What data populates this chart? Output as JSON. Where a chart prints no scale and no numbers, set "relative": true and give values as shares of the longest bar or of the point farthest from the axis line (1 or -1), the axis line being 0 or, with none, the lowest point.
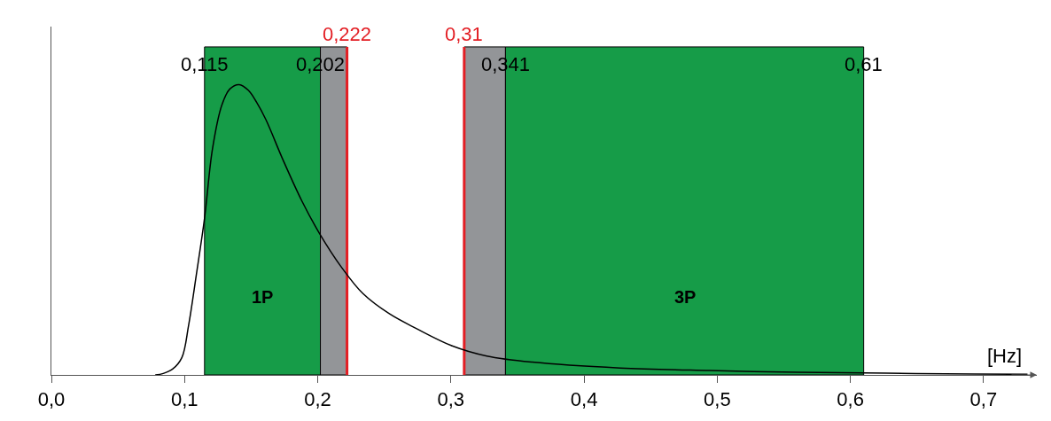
{
  "chart_data": {
    "type": "line",
    "relative": true,
    "xlabel": "[Hz]",
    "x": [
      0.078,
      0.084,
      0.091,
      0.098,
      0.103,
      0.109,
      0.115,
      0.121,
      0.128,
      0.134,
      0.141,
      0.148,
      0.154,
      0.161,
      0.174,
      0.188,
      0.201,
      0.218,
      0.234,
      0.254,
      0.274,
      0.301,
      0.327,
      0.361,
      0.427,
      0.494,
      0.56,
      0.627,
      0.693,
      0.733
    ],
    "series": [
      {
        "color": "#000000",
        "values": [
          0,
          0.005,
          0.02,
          0.06,
          0.17,
          0.35,
          0.54,
          0.78,
          0.93,
          0.985,
          1.0,
          0.98,
          0.94,
          0.88,
          0.74,
          0.6,
          0.49,
          0.37,
          0.28,
          0.21,
          0.16,
          0.1,
          0.065,
          0.044,
          0.024,
          0.015,
          0.009,
          0.006,
          0.003,
          0.002
        ]
      }
    ],
    "xlim": [
      0,
      0.74
    ],
    "xticks": [
      {
        "value": 0,
        "label": "0,0"
      },
      {
        "value": 0.1,
        "label": "0,1"
      },
      {
        "value": 0.2,
        "label": "0,2"
      },
      {
        "value": 0.3,
        "label": "0,3"
      },
      {
        "value": 0.4,
        "label": "0,4"
      },
      {
        "value": 0.5,
        "label": "0,5"
      },
      {
        "value": 0.6,
        "label": "0,6"
      },
      {
        "value": 0.7,
        "label": "0,7"
      }
    ],
    "bands": [
      {
        "axis": "x",
        "from": 0.115,
        "to": 0.202,
        "label": "1P",
        "color": "#169c48"
      },
      {
        "axis": "x",
        "from": 0.202,
        "to": 0.222,
        "color": "#939598"
      },
      {
        "axis": "x",
        "from": 0.31,
        "to": 0.341,
        "color": "#939598"
      },
      {
        "axis": "x",
        "from": 0.341,
        "to": 0.61,
        "label": "3P",
        "color": "#169c48"
      }
    ],
    "ref_lines": [
      {
        "axis": "x",
        "value": 0.222,
        "label": "0,222",
        "color": "#e31e24"
      },
      {
        "axis": "x",
        "value": 0.31,
        "label": "0,31",
        "color": "#e31e24"
      }
    ],
    "annotations": [
      {
        "text": "0,115",
        "x": 0.115,
        "y": 1.07
      },
      {
        "text": "0,202",
        "x": 0.202,
        "y": 1.07
      },
      {
        "text": "0,341",
        "x": 0.341,
        "y": 1.07
      },
      {
        "text": "0,61",
        "x": 0.61,
        "y": 1.07
      }
    ],
    "grid": false,
    "marker": "none",
    "line_style": "solid"
  }
}
